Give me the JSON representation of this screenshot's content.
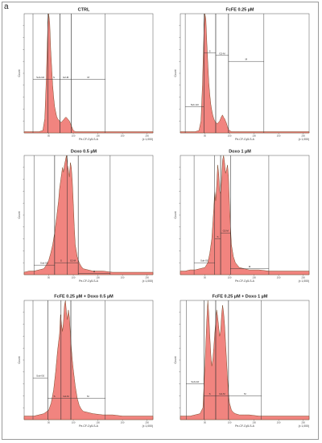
{
  "panel_letter": "a",
  "chart_data": [
    {
      "type": "area",
      "title": "CTRL",
      "xlabel": "Pe-CF-Cy5-S-A",
      "ylabel": "Count",
      "x_unit": "(x 1,000)",
      "x_ticks": [
        "50",
        "100",
        "150",
        "200",
        "250"
      ],
      "xlim": [
        0,
        262
      ],
      "ylim": [
        0,
        100
      ],
      "x": [
        0,
        10,
        20,
        30,
        38,
        42,
        45,
        48,
        50,
        52,
        54,
        56,
        58,
        60,
        62,
        64,
        66,
        68,
        70,
        72,
        74,
        76,
        78,
        80,
        82,
        84,
        86,
        88,
        90,
        92,
        94,
        96,
        98,
        100,
        104,
        108,
        112,
        120,
        140,
        170,
        200,
        230,
        262
      ],
      "values": [
        1,
        1,
        1,
        1,
        2,
        12,
        45,
        88,
        100,
        92,
        70,
        55,
        40,
        30,
        22,
        18,
        14,
        12,
        11,
        10,
        9,
        9,
        10,
        11,
        12,
        13,
        13,
        12,
        11,
        10,
        8,
        6,
        4,
        2,
        1,
        1,
        1,
        1,
        1,
        1,
        1,
        1,
        1
      ],
      "gates": [
        {
          "label": "Sub-G0",
          "x0": 18,
          "x1": 48,
          "y": 45
        },
        {
          "label": "S",
          "x0": 48,
          "x1": 73,
          "y": 45
        },
        {
          "label": "G2-M",
          "x0": 73,
          "x1": 96,
          "y": 45
        },
        {
          "label": "M",
          "x0": 96,
          "x1": 165,
          "y": 45
        }
      ]
    },
    {
      "type": "area",
      "title": "FcFE 0.25 µM",
      "xlabel": "Pe-CF-Cy5-S-A",
      "ylabel": "Count",
      "x_unit": "(x 1,000)",
      "x_ticks": [
        "50",
        "100",
        "150",
        "200",
        "250"
      ],
      "xlim": [
        0,
        262
      ],
      "ylim": [
        0,
        100
      ],
      "x": [
        0,
        10,
        20,
        30,
        38,
        42,
        45,
        48,
        50,
        52,
        54,
        56,
        58,
        60,
        62,
        64,
        66,
        68,
        70,
        72,
        74,
        76,
        78,
        80,
        82,
        84,
        86,
        88,
        90,
        92,
        94,
        96,
        98,
        100,
        104,
        108,
        112,
        120,
        140,
        170,
        200,
        230,
        262
      ],
      "values": [
        1,
        1,
        1,
        1,
        2,
        10,
        40,
        85,
        100,
        95,
        75,
        58,
        42,
        32,
        24,
        19,
        15,
        12,
        10,
        9,
        8,
        8,
        9,
        10,
        12,
        14,
        15,
        13,
        12,
        10,
        8,
        5,
        3,
        2,
        1,
        1,
        1,
        1,
        1,
        1,
        1,
        1,
        1
      ],
      "gates": [
        {
          "label": "Sub-G0",
          "x0": 10,
          "x1": 48,
          "y": 22
        },
        {
          "label": "S",
          "x0": 48,
          "x1": 72,
          "y": 67
        },
        {
          "label": "G2-M",
          "x0": 72,
          "x1": 98,
          "y": 65
        },
        {
          "label": "M",
          "x0": 98,
          "x1": 170,
          "y": 60
        }
      ]
    },
    {
      "type": "area",
      "title": "Doxo 0.5 µM",
      "xlabel": "Pe-CF-Cy5-S-A",
      "ylabel": "Count",
      "x_unit": "(x 1,000)",
      "x_ticks": [
        "50",
        "100",
        "150",
        "200",
        "250"
      ],
      "xlim": [
        0,
        262
      ],
      "ylim": [
        0,
        100
      ],
      "x": [
        0,
        10,
        20,
        30,
        40,
        45,
        50,
        54,
        58,
        62,
        66,
        70,
        72,
        74,
        76,
        78,
        80,
        82,
        84,
        86,
        88,
        90,
        92,
        94,
        96,
        98,
        100,
        102,
        104,
        108,
        112,
        116,
        120,
        130,
        140,
        160,
        180,
        200,
        230,
        262
      ],
      "values": [
        2,
        3,
        3,
        4,
        5,
        8,
        12,
        18,
        25,
        35,
        48,
        62,
        72,
        78,
        84,
        90,
        86,
        92,
        96,
        100,
        92,
        88,
        82,
        94,
        90,
        78,
        60,
        40,
        25,
        15,
        10,
        7,
        5,
        4,
        3,
        3,
        2,
        2,
        2,
        2
      ],
      "gates": [
        {
          "label": "Sub-G0",
          "x0": 20,
          "x1": 62,
          "y": 8
        },
        {
          "label": "S",
          "x0": 62,
          "x1": 88,
          "y": 10
        },
        {
          "label": "G2-M",
          "x0": 88,
          "x1": 110,
          "y": 10
        },
        {
          "label": "M",
          "x0": 110,
          "x1": 175,
          "y": 1
        }
      ]
    },
    {
      "type": "area",
      "title": "Doxo 1 µM",
      "xlabel": "Pe-CF-Cy5-S-A",
      "ylabel": "Count",
      "x_unit": "(x 1,000)",
      "x_ticks": [
        "50",
        "100",
        "150",
        "200",
        "250"
      ],
      "xlim": [
        0,
        262
      ],
      "ylim": [
        0,
        100
      ],
      "x": [
        0,
        10,
        20,
        30,
        40,
        50,
        56,
        60,
        64,
        68,
        70,
        72,
        74,
        76,
        78,
        80,
        82,
        84,
        86,
        88,
        90,
        92,
        94,
        96,
        98,
        100,
        102,
        104,
        108,
        112,
        116,
        120,
        130,
        140,
        160,
        180,
        200,
        230,
        262
      ],
      "values": [
        3,
        3,
        4,
        4,
        5,
        6,
        10,
        18,
        30,
        55,
        70,
        62,
        75,
        92,
        85,
        70,
        68,
        80,
        96,
        100,
        94,
        85,
        88,
        92,
        82,
        60,
        40,
        25,
        15,
        10,
        8,
        6,
        5,
        4,
        4,
        3,
        3,
        3,
        3
      ],
      "gates": [
        {
          "label": "Sub-G0",
          "x0": 28,
          "x1": 70,
          "y": 10
        },
        {
          "label": "S",
          "x0": 70,
          "x1": 82,
          "y": 30
        },
        {
          "label": "G2-M",
          "x0": 82,
          "x1": 102,
          "y": 35
        },
        {
          "label": "M",
          "x0": 102,
          "x1": 180,
          "y": 5
        }
      ]
    },
    {
      "type": "area",
      "title": "FcFE 0.25 µM + Doxo 0.5 µM",
      "xlabel": "Pe-CF-Cy5-S-A",
      "ylabel": "Count",
      "x_unit": "(x 1,000)",
      "x_ticks": [
        "50",
        "100",
        "150",
        "200",
        "250"
      ],
      "xlim": [
        0,
        262
      ],
      "ylim": [
        0,
        100
      ],
      "x": [
        0,
        10,
        20,
        30,
        40,
        50,
        55,
        60,
        64,
        68,
        72,
        74,
        76,
        78,
        80,
        82,
        84,
        86,
        88,
        90,
        92,
        94,
        96,
        98,
        100,
        102,
        104,
        108,
        112,
        116,
        120,
        130,
        140,
        160,
        180,
        200,
        230,
        262
      ],
      "values": [
        3,
        3,
        3,
        4,
        5,
        8,
        14,
        25,
        40,
        58,
        72,
        88,
        80,
        74,
        82,
        96,
        100,
        90,
        84,
        92,
        86,
        72,
        60,
        50,
        42,
        35,
        28,
        18,
        12,
        9,
        7,
        6,
        5,
        4,
        4,
        3,
        3,
        3
      ],
      "gates": [
        {
          "label": "Sub-G0",
          "x0": 18,
          "x1": 48,
          "y": 35
        },
        {
          "label": "S",
          "x0": 48,
          "x1": 75,
          "y": 18
        },
        {
          "label": "G2-M",
          "x0": 75,
          "x1": 95,
          "y": 18
        },
        {
          "label": "M",
          "x0": 95,
          "x1": 165,
          "y": 18
        }
      ]
    },
    {
      "type": "area",
      "title": "FcFE 0.25 µM + Doxo 1 µM",
      "xlabel": "Pe-CF-Cy5-S-A",
      "ylabel": "Count",
      "x_unit": "(x 1,000)",
      "x_ticks": [
        "50",
        "100",
        "150",
        "200",
        "250"
      ],
      "xlim": [
        0,
        262
      ],
      "ylim": [
        0,
        100
      ],
      "x": [
        0,
        10,
        20,
        30,
        40,
        46,
        50,
        54,
        56,
        58,
        60,
        62,
        64,
        66,
        68,
        70,
        72,
        74,
        76,
        78,
        80,
        82,
        84,
        86,
        88,
        90,
        92,
        94,
        96,
        98,
        100,
        104,
        108,
        112,
        120,
        130,
        140,
        160,
        180,
        200,
        230,
        262
      ],
      "values": [
        3,
        3,
        3,
        4,
        5,
        10,
        45,
        85,
        100,
        88,
        70,
        55,
        45,
        50,
        60,
        72,
        82,
        92,
        86,
        78,
        70,
        74,
        88,
        96,
        90,
        80,
        65,
        50,
        35,
        22,
        14,
        8,
        6,
        5,
        4,
        4,
        4,
        3,
        3,
        3,
        3,
        3
      ],
      "gates": [
        {
          "label": "Sub-G0",
          "x0": 12,
          "x1": 48,
          "y": 30
        },
        {
          "label": "S",
          "x0": 48,
          "x1": 72,
          "y": 20
        },
        {
          "label": "G2-M",
          "x0": 72,
          "x1": 98,
          "y": 20
        },
        {
          "label": "M",
          "x0": 98,
          "x1": 165,
          "y": 20
        }
      ]
    }
  ]
}
